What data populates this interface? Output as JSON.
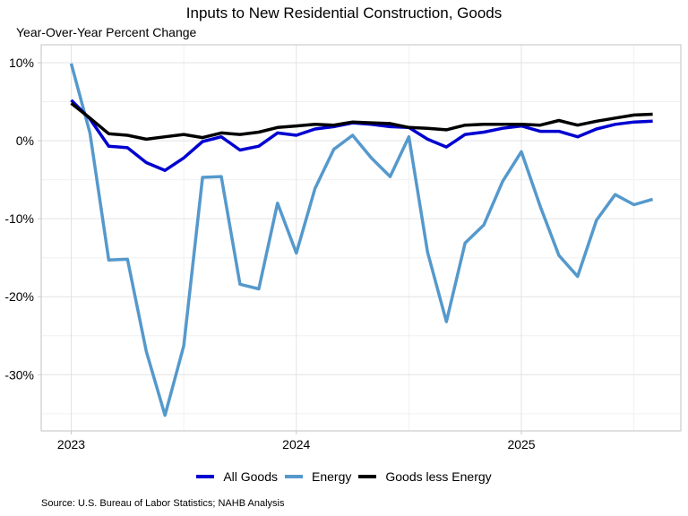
{
  "chart_data": {
    "type": "line",
    "title": "Inputs to New Residential Construction, Goods",
    "subtitle": "Year-Over-Year Percent Change",
    "xlabel": "",
    "ylabel": "",
    "x_start": "2023-01",
    "x_frequency": "monthly",
    "x_tick_labels": [
      "2023",
      "2024",
      "2025"
    ],
    "x_tick_months": [
      0,
      12,
      24
    ],
    "xlim_months": [
      -1.6,
      32.5
    ],
    "y_tick_labels": [
      "10%",
      "0%",
      "-10%",
      "-20%",
      "-30%"
    ],
    "y_ticks": [
      10,
      0,
      -10,
      -20,
      -30
    ],
    "ylim": [
      -37.2,
      12.3
    ],
    "grid": true,
    "legend_position": "bottom",
    "series": [
      {
        "name": "All Goods",
        "color": "#0000d0",
        "values": [
          5.2,
          2.8,
          -0.7,
          -0.9,
          -2.8,
          -3.8,
          -2.2,
          -0.1,
          0.5,
          -1.2,
          -0.7,
          1.0,
          0.7,
          1.5,
          1.8,
          2.3,
          2.1,
          1.8,
          1.7,
          0.2,
          -0.8,
          0.8,
          1.1,
          1.6,
          1.9,
          1.2,
          1.2,
          0.5,
          1.5,
          2.1,
          2.4,
          2.5
        ]
      },
      {
        "name": "Energy",
        "color": "#5599cc",
        "values": [
          9.9,
          1.0,
          -15.3,
          -15.2,
          -27.0,
          -35.2,
          -26.3,
          -4.7,
          -4.6,
          -18.4,
          -19.0,
          -8.0,
          -14.4,
          -6.1,
          -1.1,
          0.7,
          -2.2,
          -4.6,
          0.5,
          -14.3,
          -23.2,
          -13.1,
          -10.8,
          -5.2,
          -1.4,
          -8.4,
          -14.7,
          -17.4,
          -10.2,
          -6.9,
          -8.2,
          -7.5
        ]
      },
      {
        "name": "Goods less Energy",
        "color": "#000000",
        "values": [
          4.8,
          2.9,
          0.9,
          0.7,
          0.2,
          0.5,
          0.8,
          0.4,
          1.0,
          0.8,
          1.1,
          1.7,
          1.9,
          2.1,
          2.0,
          2.4,
          2.3,
          2.2,
          1.7,
          1.6,
          1.4,
          2.0,
          2.1,
          2.1,
          2.1,
          2.0,
          2.6,
          2.0,
          2.5,
          2.9,
          3.3,
          3.4
        ]
      }
    ],
    "source": "Source: U.S. Bureau of Labor Statistics; NAHB Analysis"
  }
}
